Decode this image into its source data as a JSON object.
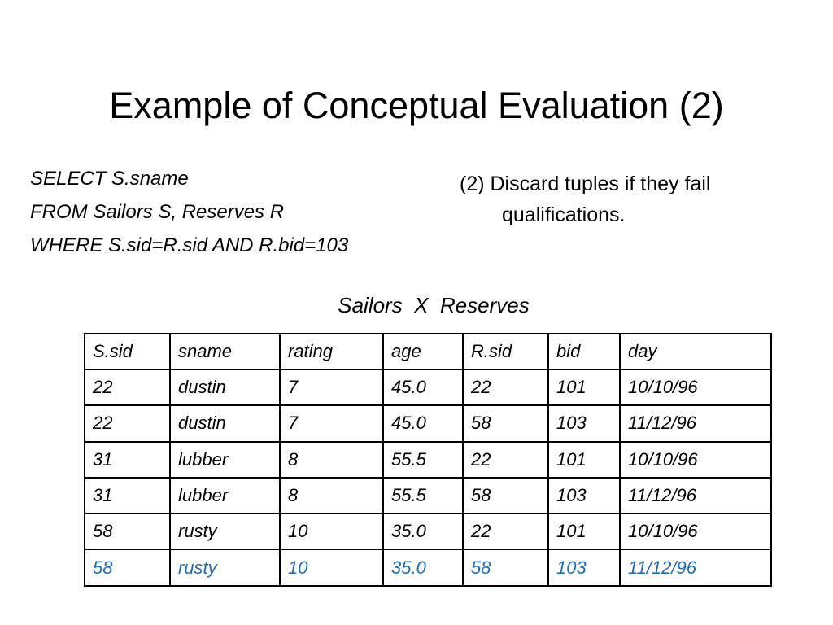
{
  "title": "Example of Conceptual Evaluation (2)",
  "query": [
    "SELECT S.sname",
    "FROM Sailors S, Reserves R",
    "WHERE S.sid=R.sid AND R.bid=103"
  ],
  "note": [
    "(2) Discard tuples if they fail",
    "qualifications."
  ],
  "table": {
    "caption": "Sailors  X  Reserves",
    "header": [
      "S.sid",
      "sname",
      "rating",
      "age",
      "R.sid",
      "bid",
      "day"
    ],
    "rows": [
      [
        "22",
        "dustin",
        "7",
        "45.0",
        "22",
        "101",
        "10/10/96"
      ],
      [
        "22",
        "dustin",
        "7",
        "45.0",
        "58",
        "103",
        "11/12/96"
      ],
      [
        "31",
        "lubber",
        "8",
        "55.5",
        "22",
        "101",
        "10/10/96"
      ],
      [
        "31",
        "lubber",
        "8",
        "55.5",
        "58",
        "103",
        "11/12/96"
      ],
      [
        "58",
        "rusty",
        "10",
        "35.0",
        "22",
        "101",
        "10/10/96"
      ],
      [
        "58",
        "rusty",
        "10",
        "35.0",
        "58",
        "103",
        "11/12/96"
      ]
    ],
    "highlight_rows": [
      5
    ],
    "highlight_color": "#1f6fb8"
  }
}
